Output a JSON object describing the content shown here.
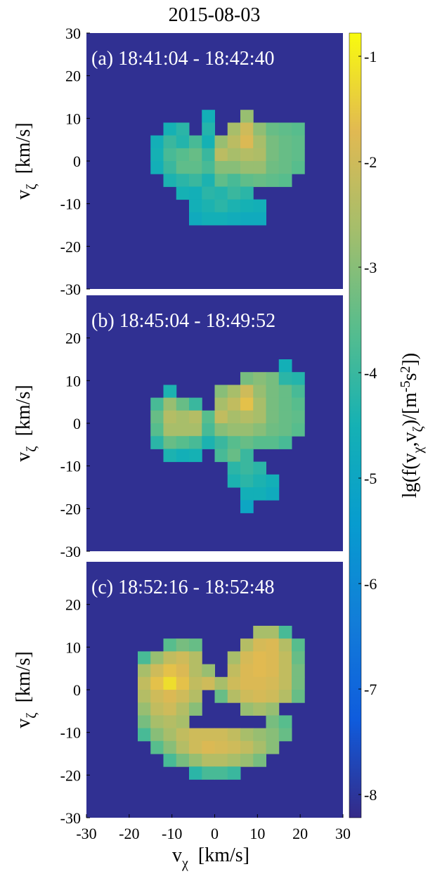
{
  "chart_data": {
    "type": "heatmap",
    "title": "2015-08-03",
    "xlabel": [
      "v",
      "χ",
      "[km/s]"
    ],
    "ylabel": [
      "v",
      "ζ",
      "[km/s]"
    ],
    "colorbar_label": [
      "lg(f(v",
      "χ",
      ",v",
      "ζ",
      ")/[m",
      "-5",
      "s",
      "2",
      "])"
    ],
    "colormap": "parula",
    "clim": [
      -8.22,
      -0.78
    ],
    "cticks": [
      -1,
      -2,
      -3,
      -4,
      -5,
      -6,
      -7,
      -8
    ],
    "xlim": [
      -30,
      30
    ],
    "ylim": [
      -30,
      30
    ],
    "xticks": [
      -30,
      -20,
      -10,
      0,
      10,
      20,
      30
    ],
    "x": [
      -16.5,
      -13.5,
      -10.5,
      -7.5,
      -4.5,
      -1.5,
      1.5,
      4.5,
      7.5,
      10.5,
      13.5,
      16.5,
      19.5
    ],
    "y": [
      13.5,
      10.5,
      7.5,
      4.5,
      1.5,
      -1.5,
      -4.5,
      -7.5,
      -10.5,
      -13.5,
      -16.5,
      -19.5
    ],
    "background": -8.1,
    "panels": [
      {
        "label": "(a) 18:41:04 - 18:42:40",
        "yticks": [
          30,
          20,
          10,
          0,
          -10,
          -20,
          -30
        ],
        "z": [
          [
            null,
            null,
            null,
            null,
            null,
            null,
            null,
            null,
            null,
            null,
            null,
            null,
            null
          ],
          [
            null,
            null,
            null,
            null,
            null,
            -4.6,
            null,
            null,
            -2.8,
            null,
            null,
            null,
            null
          ],
          [
            null,
            null,
            -4.5,
            -4.2,
            null,
            -4.3,
            null,
            -2.6,
            -2.0,
            -2.9,
            -3.4,
            -3.5,
            -3.6
          ],
          [
            null,
            -4.6,
            -4.0,
            -4.3,
            -3.8,
            -4.5,
            -2.8,
            -2.3,
            -1.8,
            -2.6,
            -3.2,
            -3.4,
            -3.5
          ],
          [
            null,
            -4.5,
            -3.8,
            -3.6,
            -3.4,
            -4.0,
            -2.3,
            -2.6,
            -2.4,
            -2.5,
            -3.2,
            -3.4,
            -3.5
          ],
          [
            null,
            -4.6,
            -4.0,
            -3.5,
            -3.5,
            -3.8,
            -3.0,
            -3.0,
            -2.8,
            -2.8,
            -3.3,
            -3.4,
            -3.6
          ],
          [
            null,
            null,
            -4.4,
            -4.2,
            -4.0,
            -4.4,
            -3.5,
            -3.8,
            -3.5,
            -3.4,
            -3.5,
            -3.6,
            null
          ],
          [
            null,
            null,
            null,
            -4.5,
            -4.6,
            -4.2,
            -4.3,
            -4.0,
            -4.2,
            null,
            null,
            null,
            null
          ],
          [
            null,
            null,
            null,
            null,
            -4.6,
            -4.4,
            -4.2,
            -4.4,
            -4.5,
            -4.6,
            null,
            null,
            null
          ],
          [
            null,
            null,
            null,
            null,
            -4.8,
            -4.6,
            -4.6,
            -4.7,
            -4.8,
            -4.8,
            null,
            null,
            null
          ],
          [
            null,
            null,
            null,
            null,
            null,
            null,
            null,
            null,
            null,
            null,
            null,
            null,
            null
          ],
          [
            null,
            null,
            null,
            null,
            null,
            null,
            null,
            null,
            null,
            null,
            null,
            null,
            null
          ]
        ]
      },
      {
        "label": "(b) 18:45:04 - 18:49:52",
        "yticks": [
          20,
          10,
          0,
          -10,
          -20,
          -30
        ],
        "z": [
          [
            null,
            null,
            null,
            null,
            null,
            null,
            null,
            null,
            null,
            null,
            null,
            -4.6,
            null
          ],
          [
            null,
            null,
            null,
            null,
            null,
            null,
            null,
            null,
            -3.2,
            -3.0,
            -3.2,
            -4.2,
            -4.3
          ],
          [
            null,
            null,
            -4.4,
            null,
            null,
            null,
            -3.0,
            -2.6,
            -2.0,
            -2.8,
            -3.2,
            -3.4,
            -3.8
          ],
          [
            null,
            -3.8,
            -2.8,
            -3.4,
            -4.0,
            null,
            -2.6,
            -2.2,
            -1.6,
            -2.6,
            -3.2,
            -3.4,
            -3.6
          ],
          [
            null,
            -3.4,
            -2.4,
            -2.6,
            -2.4,
            -3.6,
            -2.2,
            -2.6,
            -2.4,
            -2.6,
            -3.2,
            -3.4,
            -3.5
          ],
          [
            null,
            -3.6,
            -2.6,
            -2.6,
            -2.6,
            -3.8,
            -3.0,
            -2.8,
            -2.8,
            -3.0,
            -3.3,
            -3.4,
            -3.6
          ],
          [
            null,
            -4.2,
            -3.4,
            -3.6,
            -3.8,
            -4.4,
            -4.0,
            -3.6,
            -3.4,
            -3.6,
            -3.6,
            -3.8,
            null
          ],
          [
            null,
            null,
            -4.4,
            -4.6,
            -4.5,
            null,
            -3.8,
            -3.4,
            -4.0,
            null,
            null,
            null,
            null
          ],
          [
            null,
            null,
            null,
            null,
            null,
            null,
            null,
            -4.2,
            -4.0,
            -4.2,
            null,
            null,
            null
          ],
          [
            null,
            null,
            null,
            null,
            null,
            null,
            null,
            -4.4,
            -4.2,
            -4.4,
            -4.6,
            null,
            null
          ],
          [
            null,
            null,
            null,
            null,
            null,
            null,
            null,
            null,
            -4.6,
            -4.6,
            -4.8,
            null,
            null
          ],
          [
            null,
            null,
            null,
            null,
            null,
            null,
            null,
            null,
            -5.0,
            null,
            null,
            null,
            null
          ]
        ]
      },
      {
        "label": "(c) 18:52:16 - 18:52:48",
        "yticks": [
          20,
          10,
          0,
          -10,
          -20,
          -30
        ],
        "z": [
          [
            null,
            null,
            null,
            null,
            null,
            null,
            null,
            null,
            null,
            -2.6,
            -2.6,
            -3.8,
            null
          ],
          [
            null,
            null,
            -3.6,
            -3.2,
            -3.4,
            null,
            null,
            null,
            -2.4,
            -1.9,
            -1.8,
            -2.4,
            -3.6
          ],
          [
            -3.8,
            -2.8,
            -2.2,
            -2.0,
            -2.4,
            null,
            null,
            -2.6,
            -1.9,
            -1.7,
            -1.8,
            -2.2,
            -3.4
          ],
          [
            -2.6,
            -2.0,
            -1.6,
            -1.8,
            -2.4,
            -2.8,
            null,
            -2.2,
            -1.8,
            -1.7,
            -1.8,
            -2.2,
            -3.2
          ],
          [
            -2.2,
            -1.6,
            -1.2,
            -1.6,
            -2.2,
            -2.0,
            -2.6,
            -2.0,
            -1.8,
            -1.8,
            -1.9,
            -2.2,
            -3.2
          ],
          [
            -2.4,
            -2.0,
            -1.8,
            -2.0,
            -2.4,
            null,
            -3.4,
            -2.4,
            -2.0,
            -1.9,
            -2.0,
            -2.4,
            -3.4
          ],
          [
            -2.8,
            -2.2,
            -2.0,
            -2.4,
            -3.0,
            null,
            null,
            null,
            -2.8,
            -2.6,
            -2.8,
            null,
            null
          ],
          [
            -3.2,
            -2.6,
            -2.4,
            -2.6,
            null,
            null,
            null,
            null,
            null,
            null,
            -3.2,
            -3.6,
            null
          ],
          [
            -3.8,
            -3.0,
            -2.6,
            -2.2,
            -2.0,
            -2.0,
            -2.0,
            -2.2,
            -2.6,
            -2.8,
            -3.0,
            -3.4,
            null
          ],
          [
            null,
            -3.6,
            -3.0,
            -2.4,
            -2.0,
            -1.8,
            -1.9,
            -2.0,
            -2.2,
            -2.6,
            -3.0,
            null,
            null
          ],
          [
            null,
            null,
            -3.8,
            -3.2,
            -2.8,
            -2.4,
            -2.4,
            -2.6,
            -2.8,
            -3.2,
            null,
            null,
            null
          ],
          [
            null,
            null,
            null,
            null,
            -4.2,
            -3.8,
            -3.8,
            -4.0,
            null,
            null,
            null,
            null,
            null
          ]
        ]
      }
    ]
  }
}
